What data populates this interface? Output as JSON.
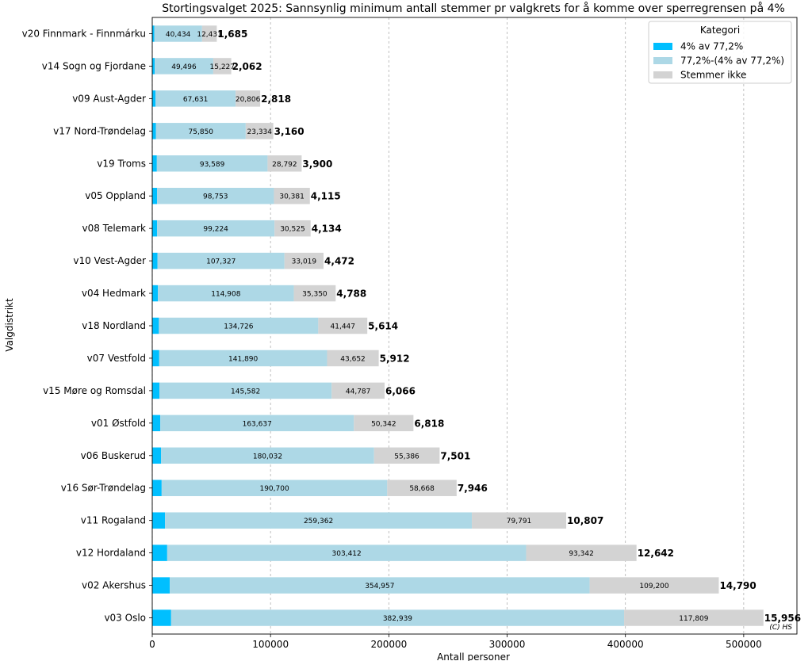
{
  "chart_data": {
    "type": "bar",
    "orientation": "horizontal",
    "stacked": true,
    "title": "Stortingsvalget 2025: Sannsynlig minimum antall stemmer pr valgkrets for å komme over sperregrensen på 4%",
    "xlabel": "Antall personer",
    "ylabel": "Valgdistrikt",
    "xlim": [
      0,
      545000
    ],
    "xticks": [
      0,
      100000,
      200000,
      300000,
      400000,
      500000
    ],
    "xtick_labels": [
      "0",
      "100000",
      "200000",
      "300000",
      "400000",
      "500000"
    ],
    "grid": "x-dashed",
    "legend": {
      "title": "Kategori",
      "placement": "top-right"
    },
    "categories": [
      "v20 Finnmark - Finnmárku",
      "v14 Sogn og Fjordane",
      "v09 Aust-Agder",
      "v17 Nord-Trøndelag",
      "v19 Troms",
      "v05 Oppland",
      "v08 Telemark",
      "v10 Vest-Agder",
      "v04 Hedmark",
      "v18 Nordland",
      "v07 Vestfold",
      "v15 Møre og Romsdal",
      "v01 Østfold",
      "v06 Buskerud",
      "v16 Sør-Trøndelag",
      "v11 Rogaland",
      "v12 Hordaland",
      "v02 Akershus",
      "v03 Oslo"
    ],
    "series": [
      {
        "name": "4% av 77,2%",
        "color": "#00bfff",
        "values": [
          1685,
          2062,
          2818,
          3160,
          3900,
          4115,
          4134,
          4472,
          4788,
          5614,
          5912,
          6066,
          6818,
          7501,
          7946,
          10807,
          12642,
          14790,
          15956
        ]
      },
      {
        "name": "77,2%-(4% av 77,2%)",
        "color": "#add8e6",
        "values": [
          40434,
          49496,
          67631,
          75850,
          93589,
          98753,
          99224,
          107327,
          114908,
          134726,
          141890,
          145582,
          163637,
          180032,
          190700,
          259362,
          303412,
          354957,
          382939
        ]
      },
      {
        "name": "Stemmer ikke",
        "color": "#d3d3d3",
        "values": [
          12431,
          15227,
          20806,
          23334,
          28792,
          30381,
          30525,
          33019,
          35350,
          41447,
          43652,
          44787,
          50342,
          55386,
          58668,
          79791,
          93342,
          109200,
          117809
        ]
      }
    ],
    "segment_labels_series_1": [
      "40,434",
      "49,496",
      "67,631",
      "75,850",
      "93,589",
      "98,753",
      "99,224",
      "107,327",
      "114,908",
      "134,726",
      "141,890",
      "145,582",
      "163,637",
      "180,032",
      "190,700",
      "259,362",
      "303,412",
      "354,957",
      "382,939"
    ],
    "segment_labels_series_2": [
      "12,431",
      "15,227",
      "20,806",
      "23,334",
      "28,792",
      "30,381",
      "30,525",
      "33,019",
      "35,350",
      "41,447",
      "43,652",
      "44,787",
      "50,342",
      "55,386",
      "58,668",
      "79,791",
      "93,342",
      "109,200",
      "117,809"
    ],
    "end_labels": [
      "1,685",
      "2,062",
      "2,818",
      "3,160",
      "3,900",
      "4,115",
      "4,134",
      "4,472",
      "4,788",
      "5,614",
      "5,912",
      "6,066",
      "6,818",
      "7,501",
      "7,946",
      "10,807",
      "12,642",
      "14,790",
      "15,956"
    ],
    "annotation": "(C) HS"
  }
}
